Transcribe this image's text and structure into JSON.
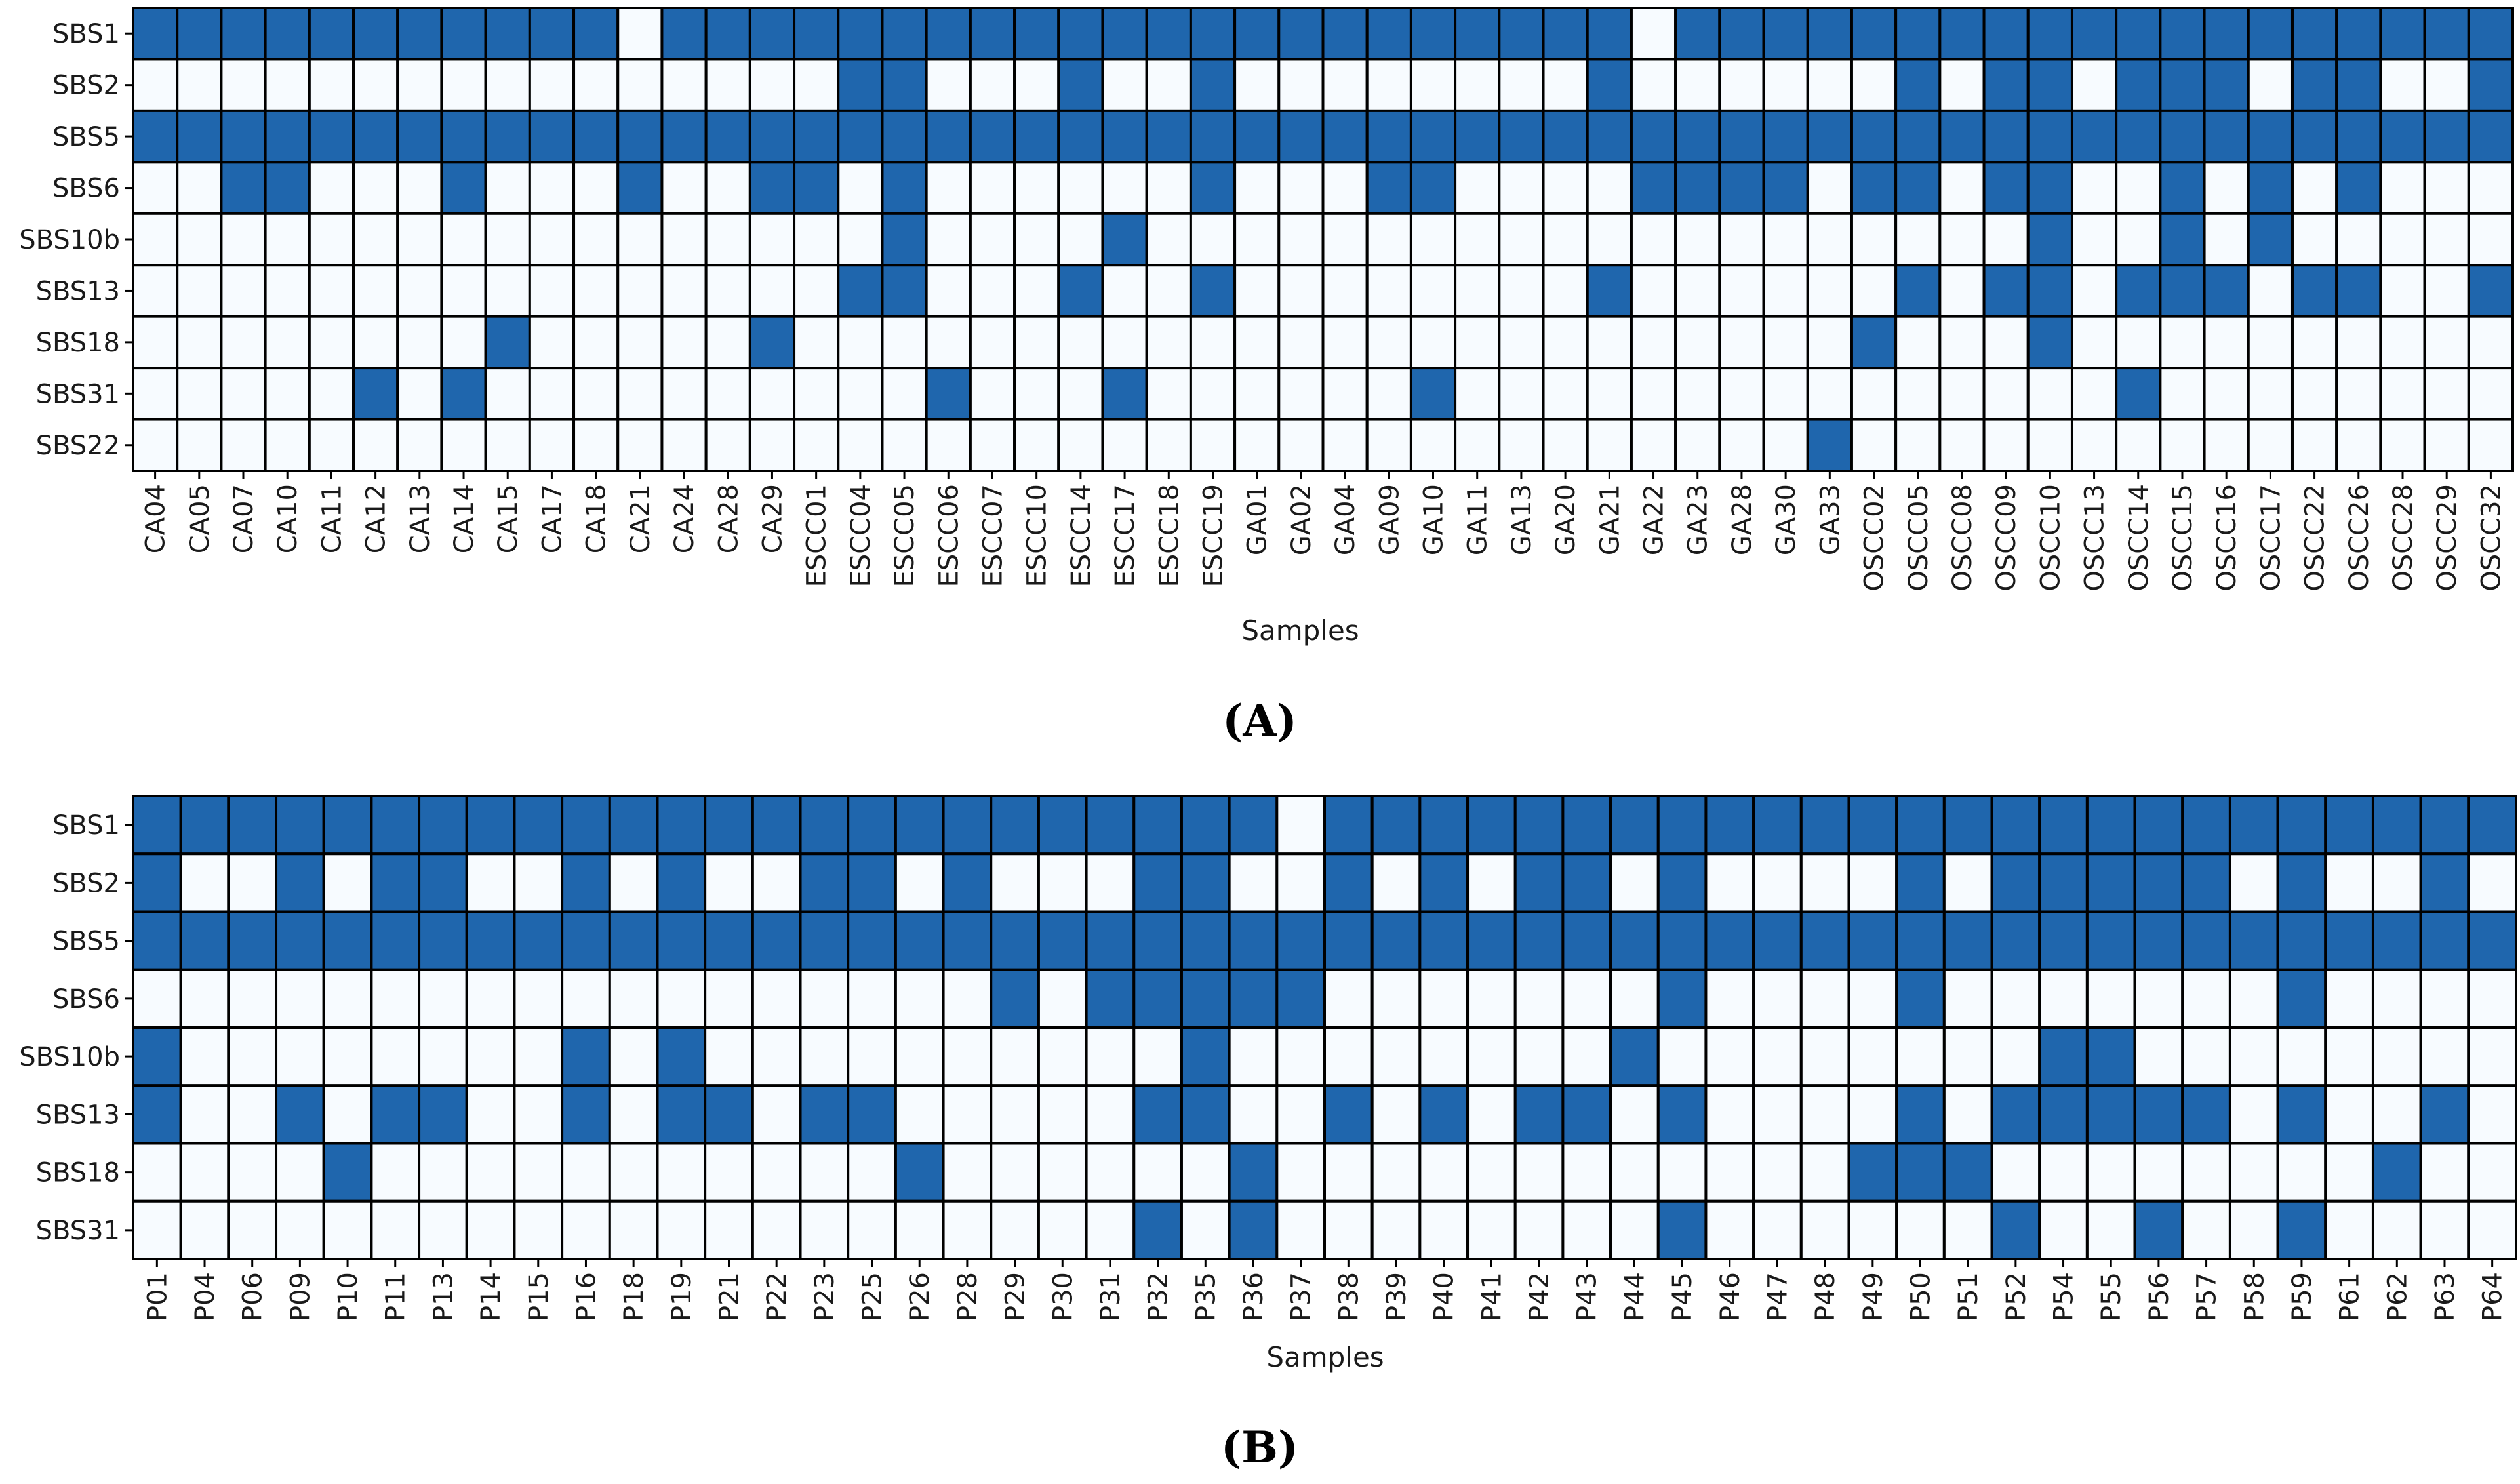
{
  "colors": {
    "present": "#1f66ad",
    "absent": "#f7fbff",
    "grid": "#000000"
  },
  "chart_data": [
    {
      "type": "heatmap",
      "panel_label": "(A)",
      "xlabel": "Samples",
      "ylabel": "",
      "rows": [
        "SBS1",
        "SBS2",
        "SBS5",
        "SBS6",
        "SBS10b",
        "SBS13",
        "SBS18",
        "SBS31",
        "SBS22"
      ],
      "columns": [
        "CA04",
        "CA05",
        "CA07",
        "CA10",
        "CA11",
        "CA12",
        "CA13",
        "CA14",
        "CA15",
        "CA17",
        "CA18",
        "CA21",
        "CA24",
        "CA28",
        "CA29",
        "ESCC01",
        "ESCC04",
        "ESCC05",
        "ESCC06",
        "ESCC07",
        "ESCC10",
        "ESCC14",
        "ESCC17",
        "ESCC18",
        "ESCC19",
        "GA01",
        "GA02",
        "GA04",
        "GA09",
        "GA10",
        "GA11",
        "GA13",
        "GA20",
        "GA21",
        "GA22",
        "GA23",
        "GA28",
        "GA30",
        "GA33",
        "OSCC02",
        "OSCC05",
        "OSCC08",
        "OSCC09",
        "OSCC10",
        "OSCC13",
        "OSCC14",
        "OSCC15",
        "OSCC16",
        "OSCC17",
        "OSCC22",
        "OSCC26",
        "OSCC28",
        "OSCC29",
        "OSCC32"
      ],
      "values": [
        [
          1,
          1,
          1,
          1,
          1,
          1,
          1,
          1,
          1,
          1,
          1,
          0,
          1,
          1,
          1,
          1,
          1,
          1,
          1,
          1,
          1,
          1,
          1,
          1,
          1,
          1,
          1,
          1,
          1,
          1,
          1,
          1,
          1,
          1,
          0,
          1,
          1,
          1,
          1,
          1,
          1,
          1,
          1,
          1,
          1,
          1,
          1,
          1,
          1,
          1,
          1,
          1,
          1,
          1
        ],
        [
          0,
          0,
          0,
          0,
          0,
          0,
          0,
          0,
          0,
          0,
          0,
          0,
          0,
          0,
          0,
          0,
          1,
          1,
          0,
          0,
          0,
          1,
          0,
          0,
          1,
          0,
          0,
          0,
          0,
          0,
          0,
          0,
          0,
          1,
          0,
          0,
          0,
          0,
          0,
          0,
          1,
          0,
          1,
          1,
          0,
          1,
          1,
          1,
          0,
          1,
          1,
          0,
          0,
          1
        ],
        [
          1,
          1,
          1,
          1,
          1,
          1,
          1,
          1,
          1,
          1,
          1,
          1,
          1,
          1,
          1,
          1,
          1,
          1,
          1,
          1,
          1,
          1,
          1,
          1,
          1,
          1,
          1,
          1,
          1,
          1,
          1,
          1,
          1,
          1,
          1,
          1,
          1,
          1,
          1,
          1,
          1,
          1,
          1,
          1,
          1,
          1,
          1,
          1,
          1,
          1,
          1,
          1,
          1,
          1
        ],
        [
          0,
          0,
          1,
          1,
          0,
          0,
          0,
          1,
          0,
          0,
          0,
          1,
          0,
          0,
          1,
          1,
          0,
          1,
          0,
          0,
          0,
          0,
          0,
          0,
          1,
          0,
          0,
          0,
          1,
          1,
          0,
          0,
          0,
          0,
          1,
          1,
          1,
          1,
          0,
          1,
          1,
          0,
          1,
          1,
          0,
          0,
          1,
          0,
          1,
          0,
          1,
          0,
          0,
          0
        ],
        [
          0,
          0,
          0,
          0,
          0,
          0,
          0,
          0,
          0,
          0,
          0,
          0,
          0,
          0,
          0,
          0,
          0,
          1,
          0,
          0,
          0,
          0,
          1,
          0,
          0,
          0,
          0,
          0,
          0,
          0,
          0,
          0,
          0,
          0,
          0,
          0,
          0,
          0,
          0,
          0,
          0,
          0,
          0,
          1,
          0,
          0,
          1,
          0,
          1,
          0,
          0,
          0,
          0,
          0
        ],
        [
          0,
          0,
          0,
          0,
          0,
          0,
          0,
          0,
          0,
          0,
          0,
          0,
          0,
          0,
          0,
          0,
          1,
          1,
          0,
          0,
          0,
          1,
          0,
          0,
          1,
          0,
          0,
          0,
          0,
          0,
          0,
          0,
          0,
          1,
          0,
          0,
          0,
          0,
          0,
          0,
          1,
          0,
          1,
          1,
          0,
          1,
          1,
          1,
          0,
          1,
          1,
          0,
          0,
          1
        ],
        [
          0,
          0,
          0,
          0,
          0,
          0,
          0,
          0,
          1,
          0,
          0,
          0,
          0,
          0,
          1,
          0,
          0,
          0,
          0,
          0,
          0,
          0,
          0,
          0,
          0,
          0,
          0,
          0,
          0,
          0,
          0,
          0,
          0,
          0,
          0,
          0,
          0,
          0,
          0,
          1,
          0,
          0,
          0,
          1,
          0,
          0,
          0,
          0,
          0,
          0,
          0,
          0,
          0,
          0
        ],
        [
          0,
          0,
          0,
          0,
          0,
          1,
          0,
          1,
          0,
          0,
          0,
          0,
          0,
          0,
          0,
          0,
          0,
          0,
          1,
          0,
          0,
          0,
          1,
          0,
          0,
          0,
          0,
          0,
          0,
          1,
          0,
          0,
          0,
          0,
          0,
          0,
          0,
          0,
          0,
          0,
          0,
          0,
          0,
          0,
          0,
          1,
          0,
          0,
          0,
          0,
          0,
          0,
          0,
          0
        ],
        [
          0,
          0,
          0,
          0,
          0,
          0,
          0,
          0,
          0,
          0,
          0,
          0,
          0,
          0,
          0,
          0,
          0,
          0,
          0,
          0,
          0,
          0,
          0,
          0,
          0,
          0,
          0,
          0,
          0,
          0,
          0,
          0,
          0,
          0,
          0,
          0,
          0,
          0,
          1,
          0,
          0,
          0,
          0,
          0,
          0,
          0,
          0,
          0,
          0,
          0,
          0,
          0,
          0,
          0
        ]
      ]
    },
    {
      "type": "heatmap",
      "panel_label": "(B)",
      "xlabel": "Samples",
      "ylabel": "",
      "rows": [
        "SBS1",
        "SBS2",
        "SBS5",
        "SBS6",
        "SBS10b",
        "SBS13",
        "SBS18",
        "SBS31"
      ],
      "columns": [
        "P01",
        "P04",
        "P06",
        "P09",
        "P10",
        "P11",
        "P13",
        "P14",
        "P15",
        "P16",
        "P18",
        "P19",
        "P21",
        "P22",
        "P23",
        "P25",
        "P26",
        "P28",
        "P29",
        "P30",
        "P31",
        "P32",
        "P35",
        "P36",
        "P37",
        "P38",
        "P39",
        "P40",
        "P41",
        "P42",
        "P43",
        "P44",
        "P45",
        "P46",
        "P47",
        "P48",
        "P49",
        "P50",
        "P51",
        "P52",
        "P54",
        "P55",
        "P56",
        "P57",
        "P58",
        "P59",
        "P61",
        "P62",
        "P63",
        "P64"
      ],
      "values": [
        [
          1,
          1,
          1,
          1,
          1,
          1,
          1,
          1,
          1,
          1,
          1,
          1,
          1,
          1,
          1,
          1,
          1,
          1,
          1,
          1,
          1,
          1,
          1,
          1,
          0,
          1,
          1,
          1,
          1,
          1,
          1,
          1,
          1,
          1,
          1,
          1,
          1,
          1,
          1,
          1,
          1,
          1,
          1,
          1,
          1,
          1,
          1,
          1,
          1,
          1
        ],
        [
          1,
          0,
          0,
          1,
          0,
          1,
          1,
          0,
          0,
          1,
          0,
          1,
          0,
          0,
          1,
          1,
          0,
          1,
          0,
          0,
          0,
          1,
          1,
          0,
          0,
          1,
          0,
          1,
          0,
          1,
          1,
          0,
          1,
          0,
          0,
          0,
          0,
          1,
          0,
          1,
          1,
          1,
          1,
          1,
          0,
          1,
          0,
          0,
          1,
          0
        ],
        [
          1,
          1,
          1,
          1,
          1,
          1,
          1,
          1,
          1,
          1,
          1,
          1,
          1,
          1,
          1,
          1,
          1,
          1,
          1,
          1,
          1,
          1,
          1,
          1,
          1,
          1,
          1,
          1,
          1,
          1,
          1,
          1,
          1,
          1,
          1,
          1,
          1,
          1,
          1,
          1,
          1,
          1,
          1,
          1,
          1,
          1,
          1,
          1,
          1,
          1
        ],
        [
          0,
          0,
          0,
          0,
          0,
          0,
          0,
          0,
          0,
          0,
          0,
          0,
          0,
          0,
          0,
          0,
          0,
          0,
          1,
          0,
          1,
          1,
          1,
          1,
          1,
          0,
          0,
          0,
          0,
          0,
          0,
          0,
          1,
          0,
          0,
          0,
          0,
          1,
          0,
          0,
          0,
          0,
          0,
          0,
          0,
          1,
          0,
          0,
          0,
          0
        ],
        [
          1,
          0,
          0,
          0,
          0,
          0,
          0,
          0,
          0,
          1,
          0,
          1,
          0,
          0,
          0,
          0,
          0,
          0,
          0,
          0,
          0,
          0,
          1,
          0,
          0,
          0,
          0,
          0,
          0,
          0,
          0,
          1,
          0,
          0,
          0,
          0,
          0,
          0,
          0,
          0,
          1,
          1,
          0,
          0,
          0,
          0,
          0,
          0,
          0,
          0
        ],
        [
          1,
          0,
          0,
          1,
          0,
          1,
          1,
          0,
          0,
          1,
          0,
          1,
          1,
          0,
          1,
          1,
          0,
          0,
          0,
          0,
          0,
          1,
          1,
          0,
          0,
          1,
          0,
          1,
          0,
          1,
          1,
          0,
          1,
          0,
          0,
          0,
          0,
          1,
          0,
          1,
          1,
          1,
          1,
          1,
          0,
          1,
          0,
          0,
          1,
          0
        ],
        [
          0,
          0,
          0,
          0,
          1,
          0,
          0,
          0,
          0,
          0,
          0,
          0,
          0,
          0,
          0,
          0,
          1,
          0,
          0,
          0,
          0,
          0,
          0,
          1,
          0,
          0,
          0,
          0,
          0,
          0,
          0,
          0,
          0,
          0,
          0,
          0,
          1,
          1,
          1,
          0,
          0,
          0,
          0,
          0,
          0,
          0,
          0,
          1,
          0,
          0
        ],
        [
          0,
          0,
          0,
          0,
          0,
          0,
          0,
          0,
          0,
          0,
          0,
          0,
          0,
          0,
          0,
          0,
          0,
          0,
          0,
          0,
          0,
          1,
          0,
          1,
          0,
          0,
          0,
          0,
          0,
          0,
          0,
          0,
          1,
          0,
          0,
          0,
          0,
          0,
          0,
          1,
          0,
          0,
          1,
          0,
          0,
          1,
          0,
          0,
          0,
          0
        ]
      ]
    }
  ]
}
